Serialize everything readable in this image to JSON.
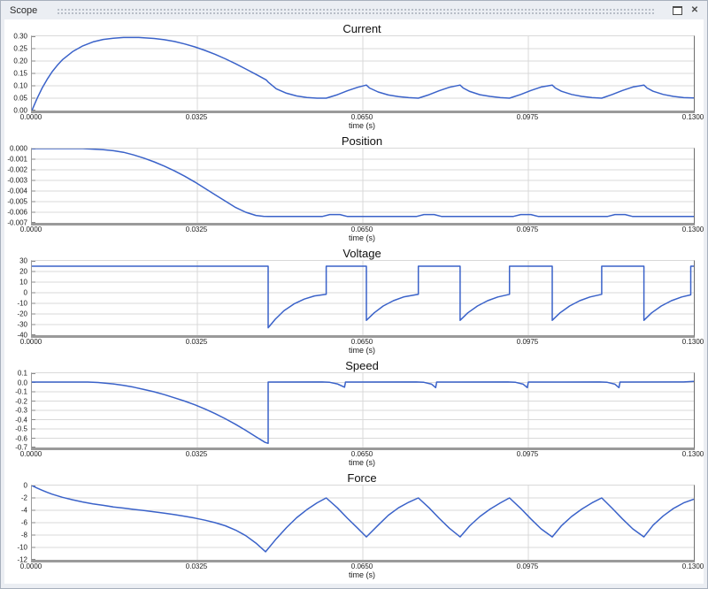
{
  "window": {
    "title": "Scope",
    "controls": {
      "restore": "restore-window",
      "close": "close-window"
    },
    "icons": {
      "close_glyph": "✕"
    }
  },
  "colors": {
    "line": "#3a62c9",
    "grid": "#d9d9d9",
    "tick": "#8a8a8a",
    "axis": "#9a9a9a",
    "titlebar_bg": "#ebeef3"
  },
  "chart_data": [
    {
      "type": "line",
      "title": "Current",
      "xlabel": "time (s)",
      "xlim": [
        0,
        0.13
      ],
      "ylim": [
        0,
        0.3
      ],
      "grid": true,
      "xticks": [
        "0.0000",
        "0.0325",
        "0.0650",
        "0.0975",
        "0.1300"
      ],
      "yticks": [
        "0.30",
        "0.25",
        "0.20",
        "0.15",
        "0.10",
        "0.05",
        "0.00"
      ],
      "points": [
        [
          0,
          0
        ],
        [
          0.001,
          0.048
        ],
        [
          0.002,
          0.09
        ],
        [
          0.003,
          0.126
        ],
        [
          0.004,
          0.157
        ],
        [
          0.005,
          0.183
        ],
        [
          0.006,
          0.205
        ],
        [
          0.008,
          0.238
        ],
        [
          0.01,
          0.261
        ],
        [
          0.012,
          0.277
        ],
        [
          0.014,
          0.287
        ],
        [
          0.016,
          0.292
        ],
        [
          0.018,
          0.295
        ],
        [
          0.021,
          0.295
        ],
        [
          0.024,
          0.291
        ],
        [
          0.026,
          0.286
        ],
        [
          0.028,
          0.279
        ],
        [
          0.03,
          0.269
        ],
        [
          0.032,
          0.257
        ],
        [
          0.034,
          0.243
        ],
        [
          0.036,
          0.227
        ],
        [
          0.038,
          0.209
        ],
        [
          0.04,
          0.189
        ],
        [
          0.042,
          0.168
        ],
        [
          0.044,
          0.146
        ],
        [
          0.046,
          0.124
        ],
        [
          0.0464,
          0.115
        ],
        [
          0.048,
          0.088
        ],
        [
          0.05,
          0.07
        ],
        [
          0.052,
          0.059
        ],
        [
          0.054,
          0.053
        ],
        [
          0.056,
          0.05
        ],
        [
          0.0578,
          0.05
        ],
        [
          0.06,
          0.064
        ],
        [
          0.062,
          0.08
        ],
        [
          0.064,
          0.094
        ],
        [
          0.0657,
          0.103
        ],
        [
          0.0663,
          0.091
        ],
        [
          0.068,
          0.075
        ],
        [
          0.07,
          0.063
        ],
        [
          0.072,
          0.056
        ],
        [
          0.074,
          0.052
        ],
        [
          0.0759,
          0.05
        ],
        [
          0.078,
          0.064
        ],
        [
          0.08,
          0.08
        ],
        [
          0.082,
          0.094
        ],
        [
          0.0841,
          0.103
        ],
        [
          0.0847,
          0.091
        ],
        [
          0.086,
          0.077
        ],
        [
          0.088,
          0.064
        ],
        [
          0.09,
          0.057
        ],
        [
          0.092,
          0.052
        ],
        [
          0.0938,
          0.05
        ],
        [
          0.096,
          0.065
        ],
        [
          0.098,
          0.081
        ],
        [
          0.1,
          0.095
        ],
        [
          0.1022,
          0.103
        ],
        [
          0.1028,
          0.091
        ],
        [
          0.104,
          0.078
        ],
        [
          0.106,
          0.065
        ],
        [
          0.108,
          0.057
        ],
        [
          0.11,
          0.052
        ],
        [
          0.1119,
          0.05
        ],
        [
          0.114,
          0.065
        ],
        [
          0.116,
          0.081
        ],
        [
          0.118,
          0.095
        ],
        [
          0.1202,
          0.103
        ],
        [
          0.1208,
          0.091
        ],
        [
          0.122,
          0.078
        ],
        [
          0.124,
          0.065
        ],
        [
          0.126,
          0.057
        ],
        [
          0.128,
          0.052
        ],
        [
          0.13,
          0.051
        ]
      ]
    },
    {
      "type": "line",
      "title": "Position",
      "xlabel": "time (s)",
      "xlim": [
        0,
        0.13
      ],
      "ylim": [
        -0.007,
        0
      ],
      "grid": true,
      "xticks": [
        "0.0000",
        "0.0325",
        "0.0650",
        "0.0975",
        "0.1300"
      ],
      "yticks": [
        "0.000",
        "-0.001",
        "-0.002",
        "-0.003",
        "-0.004",
        "-0.005",
        "-0.006",
        "-0.007"
      ],
      "points": [
        [
          0,
          0
        ],
        [
          0.01,
          0
        ],
        [
          0.012,
          -5e-05
        ],
        [
          0.014,
          -0.0001
        ],
        [
          0.016,
          -0.0002
        ],
        [
          0.018,
          -0.00035
        ],
        [
          0.02,
          -0.0006
        ],
        [
          0.022,
          -0.0009
        ],
        [
          0.024,
          -0.00125
        ],
        [
          0.026,
          -0.00165
        ],
        [
          0.028,
          -0.0021
        ],
        [
          0.03,
          -0.0026
        ],
        [
          0.032,
          -0.00315
        ],
        [
          0.034,
          -0.00375
        ],
        [
          0.036,
          -0.00435
        ],
        [
          0.038,
          -0.00495
        ],
        [
          0.04,
          -0.00555
        ],
        [
          0.042,
          -0.006
        ],
        [
          0.044,
          -0.0063
        ],
        [
          0.0455,
          -0.00638
        ],
        [
          0.0464,
          -0.0064
        ],
        [
          0.057,
          -0.0064
        ],
        [
          0.0585,
          -0.00622
        ],
        [
          0.0605,
          -0.00622
        ],
        [
          0.062,
          -0.0064
        ],
        [
          0.0755,
          -0.0064
        ],
        [
          0.077,
          -0.00622
        ],
        [
          0.079,
          -0.00622
        ],
        [
          0.0805,
          -0.0064
        ],
        [
          0.0945,
          -0.0064
        ],
        [
          0.096,
          -0.00622
        ],
        [
          0.098,
          -0.00622
        ],
        [
          0.0995,
          -0.0064
        ],
        [
          0.113,
          -0.0064
        ],
        [
          0.1145,
          -0.00622
        ],
        [
          0.1165,
          -0.00622
        ],
        [
          0.118,
          -0.0064
        ],
        [
          0.13,
          -0.0064
        ]
      ]
    },
    {
      "type": "line",
      "title": "Voltage",
      "xlabel": "time (s)",
      "xlim": [
        0,
        0.13
      ],
      "ylim": [
        -40,
        30
      ],
      "grid": true,
      "xticks": [
        "0.0000",
        "0.0325",
        "0.0650",
        "0.0975",
        "0.1300"
      ],
      "yticks": [
        "30",
        "20",
        "10",
        "0",
        "-10",
        "-20",
        "-30",
        "-40"
      ],
      "points": [
        [
          0,
          25
        ],
        [
          0.0464,
          25
        ],
        [
          0.0464,
          -33
        ],
        [
          0.0478,
          -25
        ],
        [
          0.0495,
          -17
        ],
        [
          0.0515,
          -10.5
        ],
        [
          0.0535,
          -6
        ],
        [
          0.0555,
          -3
        ],
        [
          0.0578,
          -1.5
        ],
        [
          0.0578,
          25
        ],
        [
          0.0657,
          25
        ],
        [
          0.0657,
          -26
        ],
        [
          0.0672,
          -19
        ],
        [
          0.069,
          -12.5
        ],
        [
          0.071,
          -7.5
        ],
        [
          0.073,
          -4
        ],
        [
          0.0759,
          -1.5
        ],
        [
          0.0759,
          25
        ],
        [
          0.0841,
          25
        ],
        [
          0.0841,
          -26
        ],
        [
          0.0856,
          -19
        ],
        [
          0.0875,
          -12.5
        ],
        [
          0.0895,
          -7.5
        ],
        [
          0.0915,
          -4
        ],
        [
          0.0938,
          -1.5
        ],
        [
          0.0938,
          25
        ],
        [
          0.1022,
          25
        ],
        [
          0.1022,
          -26
        ],
        [
          0.1037,
          -19
        ],
        [
          0.1056,
          -12.5
        ],
        [
          0.1076,
          -7.5
        ],
        [
          0.1096,
          -4
        ],
        [
          0.1119,
          -1.5
        ],
        [
          0.1119,
          25
        ],
        [
          0.1202,
          25
        ],
        [
          0.1202,
          -26
        ],
        [
          0.1217,
          -19
        ],
        [
          0.1236,
          -12.5
        ],
        [
          0.1256,
          -7.5
        ],
        [
          0.1276,
          -4
        ],
        [
          0.1294,
          -2
        ],
        [
          0.1294,
          25
        ],
        [
          0.13,
          25
        ]
      ]
    },
    {
      "type": "line",
      "title": "Speed",
      "xlabel": "time (s)",
      "xlim": [
        0,
        0.13
      ],
      "ylim": [
        -0.7,
        0.1
      ],
      "grid": true,
      "xticks": [
        "0.0000",
        "0.0325",
        "0.0650",
        "0.0975",
        "0.1300"
      ],
      "yticks": [
        "0.1",
        "0.0",
        "-0.1",
        "-0.2",
        "-0.3",
        "-0.4",
        "-0.5",
        "-0.6",
        "-0.7"
      ],
      "points": [
        [
          0,
          0.005
        ],
        [
          0.011,
          0.005
        ],
        [
          0.013,
          0
        ],
        [
          0.016,
          -0.015
        ],
        [
          0.018,
          -0.03
        ],
        [
          0.02,
          -0.05
        ],
        [
          0.022,
          -0.075
        ],
        [
          0.024,
          -0.1
        ],
        [
          0.026,
          -0.13
        ],
        [
          0.028,
          -0.165
        ],
        [
          0.03,
          -0.2
        ],
        [
          0.032,
          -0.24
        ],
        [
          0.034,
          -0.285
        ],
        [
          0.036,
          -0.335
        ],
        [
          0.038,
          -0.39
        ],
        [
          0.04,
          -0.45
        ],
        [
          0.042,
          -0.515
        ],
        [
          0.044,
          -0.585
        ],
        [
          0.0458,
          -0.645
        ],
        [
          0.0464,
          -0.655
        ],
        [
          0.0464,
          0.005
        ],
        [
          0.057,
          0.006
        ],
        [
          0.0585,
          0.002
        ],
        [
          0.06,
          -0.015
        ],
        [
          0.0614,
          -0.05
        ],
        [
          0.0616,
          0.005
        ],
        [
          0.0755,
          0.006
        ],
        [
          0.077,
          0.002
        ],
        [
          0.0785,
          -0.018
        ],
        [
          0.0793,
          -0.055
        ],
        [
          0.0795,
          0.005
        ],
        [
          0.0935,
          0.006
        ],
        [
          0.095,
          0.002
        ],
        [
          0.0965,
          -0.018
        ],
        [
          0.0973,
          -0.055
        ],
        [
          0.0975,
          0.005
        ],
        [
          0.1115,
          0.006
        ],
        [
          0.113,
          0.002
        ],
        [
          0.1145,
          -0.018
        ],
        [
          0.1153,
          -0.055
        ],
        [
          0.1155,
          0.005
        ],
        [
          0.128,
          0.006
        ],
        [
          0.13,
          0.012
        ]
      ]
    },
    {
      "type": "line",
      "title": "Force",
      "xlabel": "time (s)",
      "xlim": [
        0,
        0.13
      ],
      "ylim": [
        -12,
        0
      ],
      "grid": true,
      "xticks": [
        "0.0000",
        "0.0325",
        "0.0650",
        "0.0975",
        "0.1300"
      ],
      "yticks": [
        "0",
        "-2",
        "-4",
        "-6",
        "-8",
        "-10",
        "-12"
      ],
      "points": [
        [
          0,
          0
        ],
        [
          0.001,
          -0.4
        ],
        [
          0.002,
          -0.75
        ],
        [
          0.003,
          -1.1
        ],
        [
          0.004,
          -1.4
        ],
        [
          0.006,
          -1.9
        ],
        [
          0.008,
          -2.3
        ],
        [
          0.01,
          -2.65
        ],
        [
          0.012,
          -2.95
        ],
        [
          0.014,
          -3.2
        ],
        [
          0.016,
          -3.45
        ],
        [
          0.018,
          -3.65
        ],
        [
          0.02,
          -3.85
        ],
        [
          0.022,
          -4.05
        ],
        [
          0.024,
          -4.25
        ],
        [
          0.026,
          -4.45
        ],
        [
          0.028,
          -4.7
        ],
        [
          0.03,
          -4.95
        ],
        [
          0.032,
          -5.25
        ],
        [
          0.034,
          -5.6
        ],
        [
          0.036,
          -6
        ],
        [
          0.038,
          -6.5
        ],
        [
          0.04,
          -7.2
        ],
        [
          0.042,
          -8.1
        ],
        [
          0.044,
          -9.3
        ],
        [
          0.0459,
          -10.7
        ],
        [
          0.048,
          -8.6
        ],
        [
          0.05,
          -6.8
        ],
        [
          0.052,
          -5.2
        ],
        [
          0.054,
          -3.9
        ],
        [
          0.056,
          -2.8
        ],
        [
          0.0578,
          -2
        ],
        [
          0.06,
          -3.6
        ],
        [
          0.062,
          -5.3
        ],
        [
          0.064,
          -6.9
        ],
        [
          0.0657,
          -8.3
        ],
        [
          0.068,
          -6.4
        ],
        [
          0.07,
          -4.8
        ],
        [
          0.072,
          -3.6
        ],
        [
          0.074,
          -2.7
        ],
        [
          0.0759,
          -2
        ],
        [
          0.078,
          -3.6
        ],
        [
          0.08,
          -5.3
        ],
        [
          0.082,
          -6.9
        ],
        [
          0.0841,
          -8.3
        ],
        [
          0.086,
          -6.5
        ],
        [
          0.088,
          -5
        ],
        [
          0.09,
          -3.8
        ],
        [
          0.092,
          -2.8
        ],
        [
          0.0938,
          -2
        ],
        [
          0.096,
          -3.7
        ],
        [
          0.098,
          -5.4
        ],
        [
          0.1,
          -7
        ],
        [
          0.1022,
          -8.3
        ],
        [
          0.104,
          -6.5
        ],
        [
          0.106,
          -5
        ],
        [
          0.108,
          -3.8
        ],
        [
          0.11,
          -2.8
        ],
        [
          0.1119,
          -2
        ],
        [
          0.114,
          -3.7
        ],
        [
          0.116,
          -5.4
        ],
        [
          0.118,
          -7
        ],
        [
          0.1202,
          -8.3
        ],
        [
          0.122,
          -6.4
        ],
        [
          0.124,
          -4.9
        ],
        [
          0.126,
          -3.7
        ],
        [
          0.128,
          -2.8
        ],
        [
          0.13,
          -2.2
        ]
      ]
    }
  ]
}
